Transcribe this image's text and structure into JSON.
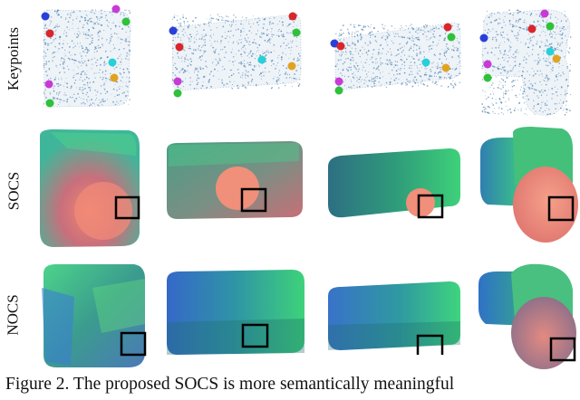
{
  "figure": {
    "rows": [
      {
        "id": "keypoints",
        "label": "Keypoints"
      },
      {
        "id": "socs",
        "label": "SOCS"
      },
      {
        "id": "nocs",
        "label": "NOCS"
      }
    ],
    "objects": [
      "object-1",
      "object-2",
      "object-3",
      "object-4"
    ],
    "keypoint_colors": [
      "#2a3fd9",
      "#d9262a",
      "#27d0d8",
      "#e0a321",
      "#c83ad6",
      "#2fc13a"
    ],
    "caption": "Figure 2. The proposed SOCS is more semantically meaningful"
  }
}
